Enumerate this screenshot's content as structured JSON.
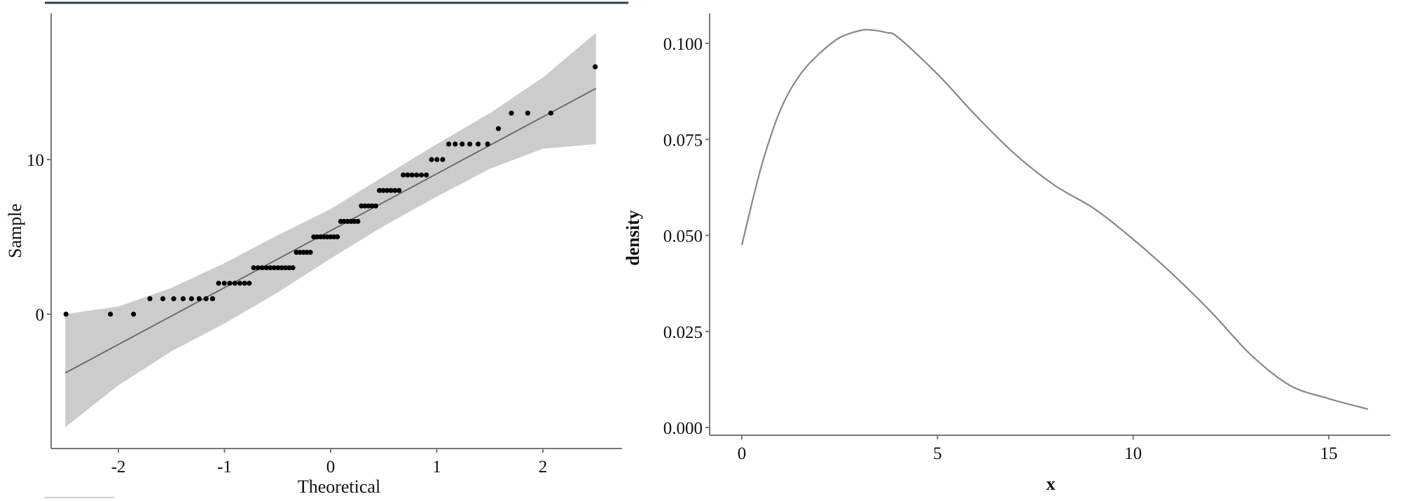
{
  "colors": {
    "band": "#cccccc",
    "line": "#666666",
    "point": "#000000",
    "axis": "#777777",
    "topbar": "#2f3e4c",
    "density": "#888888"
  },
  "chart_data": [
    {
      "type": "scatter",
      "subtype": "qq-plot",
      "xlabel": "Theoretical",
      "ylabel": "Sample",
      "xlim": [
        -2.65,
        2.7
      ],
      "ylim": [
        -8.5,
        19.5
      ],
      "x_ticks": [
        "-2",
        "-1",
        "0",
        "1",
        "2"
      ],
      "x_tick_values": [
        -2,
        -1,
        0,
        1,
        2
      ],
      "y_ticks": [
        "0",
        "10"
      ],
      "y_tick_values": [
        0,
        10
      ],
      "sample_counts": [
        {
          "value": 0,
          "count": 3
        },
        {
          "value": 1,
          "count": 8
        },
        {
          "value": 2,
          "count": 7
        },
        {
          "value": 3,
          "count": 11
        },
        {
          "value": 4,
          "count": 5
        },
        {
          "value": 5,
          "count": 8
        },
        {
          "value": 6,
          "count": 6
        },
        {
          "value": 7,
          "count": 5
        },
        {
          "value": 8,
          "count": 6
        },
        {
          "value": 9,
          "count": 6
        },
        {
          "value": 10,
          "count": 3
        },
        {
          "value": 11,
          "count": 6
        },
        {
          "value": 12,
          "count": 1
        },
        {
          "value": 13,
          "count": 3
        },
        {
          "value": 16,
          "count": 1
        }
      ],
      "reference_line": {
        "intercept": 5.4,
        "slope": 3.68
      },
      "confidence_band": {
        "x": [
          -2.5,
          -2.0,
          -1.5,
          -1.0,
          -0.5,
          0,
          0.5,
          1.0,
          1.5,
          2.0,
          2.5
        ],
        "lower": [
          -7.3,
          -4.6,
          -2.4,
          -0.6,
          1.4,
          3.6,
          5.7,
          7.6,
          9.4,
          10.7,
          11.0
        ],
        "upper": [
          0.0,
          0.5,
          1.7,
          3.3,
          5.1,
          6.8,
          8.9,
          11.0,
          13.0,
          15.3,
          18.2
        ]
      },
      "grid": false
    },
    {
      "type": "line",
      "subtype": "density",
      "xlabel": "x",
      "ylabel": "density",
      "xlim": [
        -0.8,
        17
      ],
      "ylim": [
        -0.003,
        0.109
      ],
      "x_ticks": [
        "0",
        "5",
        "10",
        "15"
      ],
      "x_tick_values": [
        0,
        5,
        10,
        15
      ],
      "y_ticks": [
        "0.000",
        "0.025",
        "0.050",
        "0.075",
        "0.100"
      ],
      "y_tick_values": [
        0,
        0.025,
        0.05,
        0.075,
        0.1
      ],
      "x": [
        0,
        0.5,
        1,
        1.5,
        2,
        2.5,
        3,
        3.3,
        3.7,
        4,
        5,
        6,
        7,
        8,
        9,
        10,
        11,
        12,
        13,
        14,
        15,
        16
      ],
      "y": [
        0.0475,
        0.068,
        0.083,
        0.092,
        0.0975,
        0.1015,
        0.1033,
        0.1035,
        0.1028,
        0.1015,
        0.092,
        0.081,
        0.071,
        0.063,
        0.057,
        0.049,
        0.04,
        0.03,
        0.019,
        0.011,
        0.0075,
        0.0048
      ],
      "grid": false
    }
  ]
}
